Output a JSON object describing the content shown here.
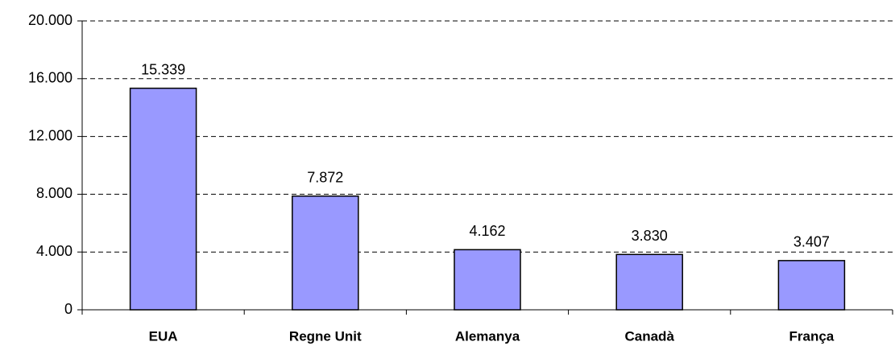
{
  "chart_data": {
    "type": "bar",
    "categories": [
      "EUA",
      "Regne Unit",
      "Alemanya",
      "Canadà",
      "França"
    ],
    "values": [
      15339,
      7872,
      4162,
      3830,
      3407
    ],
    "value_labels": [
      "15.339",
      "7.872",
      "4.162",
      "3.830",
      "3.407"
    ],
    "color": "#9999ff",
    "ylim": [
      0,
      20000
    ],
    "yticks": [
      0,
      {
        "value": 4000,
        "label": "4.000"
      },
      {
        "value": 8000,
        "label": "8.000"
      },
      {
        "value": 12000,
        "label": "12.000"
      },
      {
        "value": 16000,
        "label": "16.000"
      },
      {
        "value": 20000,
        "label": "20.000"
      }
    ],
    "grid": true
  }
}
